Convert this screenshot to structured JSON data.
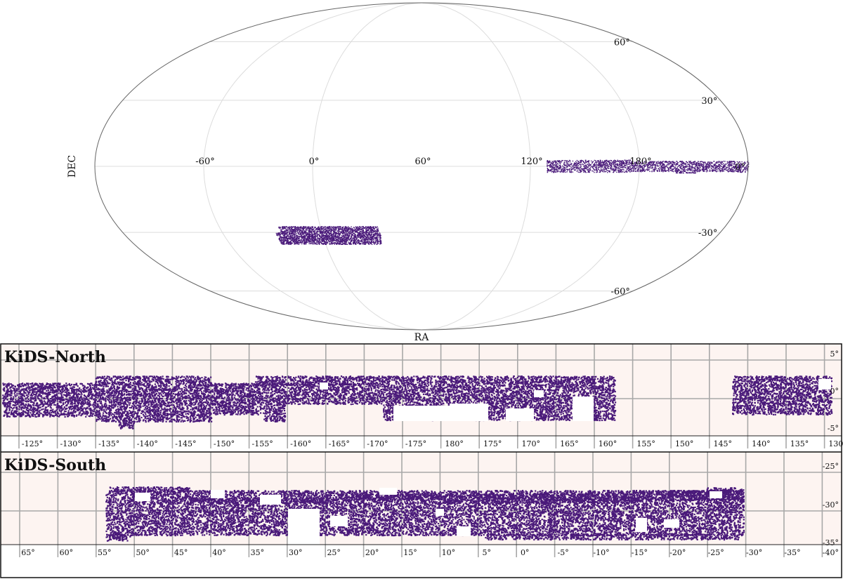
{
  "chart_data": [
    {
      "type": "scatter",
      "projection": "mollweide",
      "xlabel": "RA",
      "ylabel": "DEC",
      "ra_tick_labels": [
        "180°",
        "120°",
        "60°",
        "0°",
        "-60°"
      ],
      "ra_tick_values": [
        180,
        120,
        60,
        0,
        -60
      ],
      "dec_tick_labels": [
        "60°",
        "30°",
        "0°",
        "-30°",
        "-60°"
      ],
      "dec_tick_values": [
        60,
        30,
        0,
        -30,
        -60
      ],
      "grid": true,
      "point_color": "#4a1a7a",
      "regions": [
        {
          "name": "",
          "ra_range": [
            129,
            236
          ],
          "dec_range": [
            -2.5,
            3
          ]
        },
        {
          "name": "",
          "ra_range": [
            -38,
            35
          ],
          "dec_range": [
            -35.5,
            -26
          ]
        }
      ]
    },
    {
      "type": "scatter",
      "title": "KiDS-North",
      "x_tick_labels": [
        "-125°",
        "-130°",
        "-135°",
        "-140°",
        "-145°",
        "-150°",
        "-155°",
        "-160°",
        "-165°",
        "-170°",
        "-175°",
        "180°",
        "175°",
        "170°",
        "165°",
        "160°",
        "155°",
        "150°",
        "145°",
        "140°",
        "135°",
        "130°"
      ],
      "y_tick_labels": [
        "5°",
        "0°",
        "-5°"
      ],
      "background": "#fdf4f1",
      "point_color": "#4a1a7a",
      "coverage": [
        {
          "ra": [
            -123,
            -132
          ],
          "dec": [
            -2,
            2.5
          ]
        },
        {
          "ra": [
            -132,
            -158
          ],
          "dec": [
            -4,
            4
          ]
        },
        {
          "ra": [
            -158,
            160
          ],
          "dec": [
            -4,
            4
          ]
        },
        {
          "ra": [
            141,
            129
          ],
          "dec": [
            -3,
            3.5
          ]
        }
      ]
    },
    {
      "type": "scatter",
      "title": "KiDS-South",
      "x_tick_labels": [
        "65°",
        "60°",
        "55°",
        "50°",
        "45°",
        "40°",
        "35°",
        "30°",
        "25°",
        "20°",
        "15°",
        "10°",
        "5°",
        "0°",
        "-5°",
        "-10°",
        "-15°",
        "-20°",
        "-25°",
        "-30°",
        "-35°",
        "-40°"
      ],
      "y_tick_labels": [
        "-25°",
        "-30°",
        "-35°"
      ],
      "background": "#fdf4f1",
      "point_color": "#4a1a7a",
      "coverage": [
        {
          "ra": [
            53,
            -28
          ],
          "dec": [
            -36,
            -27
          ]
        }
      ]
    }
  ]
}
